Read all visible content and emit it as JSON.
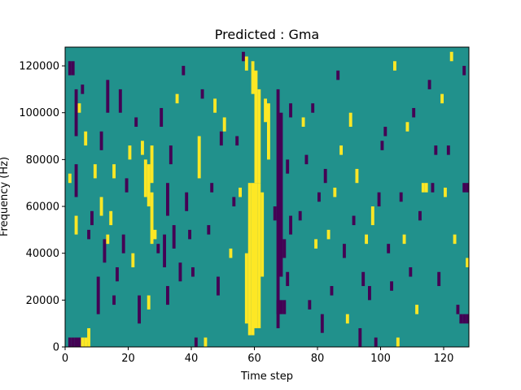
{
  "chart_data": {
    "type": "heatmap",
    "title": "Predicted : Gma",
    "xlabel": "Time step",
    "ylabel": "Frequency (Hz)",
    "xlim": [
      0,
      128
    ],
    "ylim": [
      0,
      128000
    ],
    "n_cols": 128,
    "n_rows": 64,
    "x_ticks": [
      0,
      20,
      40,
      60,
      80,
      100,
      120
    ],
    "x_tick_labels": [
      "0",
      "20",
      "40",
      "60",
      "80",
      "100",
      "120"
    ],
    "y_ticks": [
      0,
      20000,
      40000,
      60000,
      80000,
      100000,
      120000
    ],
    "y_tick_labels": [
      "0",
      "20000",
      "40000",
      "60000",
      "80000",
      "100000",
      "120000"
    ],
    "colors": {
      "low": "#440154",
      "mid": "#21918c",
      "high": "#fde725"
    },
    "base_level": "mid",
    "cells": [
      {
        "t": 58,
        "f0": 5000,
        "f1": 70000,
        "level": "high"
      },
      {
        "t": 59,
        "f0": 5000,
        "f1": 70000,
        "level": "high"
      },
      {
        "t": 60,
        "f0": 8000,
        "f1": 70000,
        "level": "high"
      },
      {
        "t": 61,
        "f0": 8000,
        "f1": 70000,
        "level": "high"
      },
      {
        "t": 60,
        "f0": 70000,
        "f1": 118000,
        "level": "high"
      },
      {
        "t": 61,
        "f0": 70000,
        "f1": 110000,
        "level": "high"
      },
      {
        "t": 59,
        "f0": 108000,
        "f1": 122000,
        "level": "high"
      },
      {
        "t": 62,
        "f0": 30000,
        "f1": 66000,
        "level": "high"
      },
      {
        "t": 57,
        "f0": 10000,
        "f1": 40000,
        "level": "high"
      },
      {
        "t": 63,
        "f0": 96000,
        "f1": 106000,
        "level": "high"
      },
      {
        "t": 64,
        "f0": 80000,
        "f1": 104000,
        "level": "high"
      },
      {
        "t": 67,
        "f0": 8000,
        "f1": 110000,
        "level": "low"
      },
      {
        "t": 68,
        "f0": 30000,
        "f1": 100000,
        "level": "low"
      },
      {
        "t": 66,
        "f0": 54000,
        "f1": 60000,
        "level": "low"
      },
      {
        "t": 67,
        "f0": 14000,
        "f1": 20000,
        "level": "low"
      },
      {
        "t": 68,
        "f0": 14000,
        "f1": 20000,
        "level": "low"
      },
      {
        "t": 69,
        "f0": 14000,
        "f1": 20000,
        "level": "low"
      },
      {
        "t": 70,
        "f0": 26000,
        "f1": 32000,
        "level": "low"
      },
      {
        "t": 69,
        "f0": 38000,
        "f1": 46000,
        "level": "low"
      },
      {
        "t": 70,
        "f0": 74000,
        "f1": 80000,
        "level": "low"
      },
      {
        "t": 71,
        "f0": 98000,
        "f1": 104000,
        "level": "low"
      },
      {
        "t": 71,
        "f0": 48000,
        "f1": 56000,
        "level": "low"
      },
      {
        "t": 1,
        "f0": 0,
        "f1": 4000,
        "level": "low"
      },
      {
        "t": 2,
        "f0": 0,
        "f1": 4000,
        "level": "low"
      },
      {
        "t": 3,
        "f0": 0,
        "f1": 4000,
        "level": "low"
      },
      {
        "t": 4,
        "f0": 0,
        "f1": 4000,
        "level": "low"
      },
      {
        "t": 5,
        "f0": 0,
        "f1": 4000,
        "level": "high"
      },
      {
        "t": 6,
        "f0": 0,
        "f1": 4000,
        "level": "high"
      },
      {
        "t": 7,
        "f0": 0,
        "f1": 4000,
        "level": "high"
      },
      {
        "t": 1,
        "f0": 116000,
        "f1": 122000,
        "level": "low"
      },
      {
        "t": 2,
        "f0": 116000,
        "f1": 122000,
        "level": "low"
      },
      {
        "t": 3,
        "f0": 48000,
        "f1": 56000,
        "level": "high"
      },
      {
        "t": 1,
        "f0": 70000,
        "f1": 74000,
        "level": "high"
      },
      {
        "t": 3,
        "f0": 64000,
        "f1": 78000,
        "level": "low"
      },
      {
        "t": 3,
        "f0": 90000,
        "f1": 110000,
        "level": "low"
      },
      {
        "t": 4,
        "f0": 100000,
        "f1": 104000,
        "level": "high"
      },
      {
        "t": 5,
        "f0": 108000,
        "f1": 112000,
        "level": "low"
      },
      {
        "t": 6,
        "f0": 86000,
        "f1": 92000,
        "level": "high"
      },
      {
        "t": 7,
        "f0": 46000,
        "f1": 50000,
        "level": "low"
      },
      {
        "t": 7,
        "f0": 2000,
        "f1": 8000,
        "level": "high"
      },
      {
        "t": 8,
        "f0": 52000,
        "f1": 58000,
        "level": "low"
      },
      {
        "t": 9,
        "f0": 72000,
        "f1": 78000,
        "level": "high"
      },
      {
        "t": 10,
        "f0": 14000,
        "f1": 30000,
        "level": "low"
      },
      {
        "t": 11,
        "f0": 84000,
        "f1": 92000,
        "level": "low"
      },
      {
        "t": 11,
        "f0": 56000,
        "f1": 64000,
        "level": "high"
      },
      {
        "t": 12,
        "f0": 36000,
        "f1": 46000,
        "level": "low"
      },
      {
        "t": 13,
        "f0": 100000,
        "f1": 114000,
        "level": "low"
      },
      {
        "t": 13,
        "f0": 44000,
        "f1": 48000,
        "level": "high"
      },
      {
        "t": 14,
        "f0": 52000,
        "f1": 58000,
        "level": "high"
      },
      {
        "t": 15,
        "f0": 72000,
        "f1": 78000,
        "level": "high"
      },
      {
        "t": 15,
        "f0": 18000,
        "f1": 22000,
        "level": "low"
      },
      {
        "t": 16,
        "f0": 28000,
        "f1": 34000,
        "level": "low"
      },
      {
        "t": 17,
        "f0": 100000,
        "f1": 110000,
        "level": "low"
      },
      {
        "t": 18,
        "f0": 40000,
        "f1": 48000,
        "level": "low"
      },
      {
        "t": 19,
        "f0": 66000,
        "f1": 72000,
        "level": "low"
      },
      {
        "t": 20,
        "f0": 80000,
        "f1": 86000,
        "level": "high"
      },
      {
        "t": 21,
        "f0": 34000,
        "f1": 40000,
        "level": "high"
      },
      {
        "t": 22,
        "f0": 94000,
        "f1": 98000,
        "level": "low"
      },
      {
        "t": 23,
        "f0": 10000,
        "f1": 22000,
        "level": "low"
      },
      {
        "t": 24,
        "f0": 82000,
        "f1": 88000,
        "level": "high"
      },
      {
        "t": 25,
        "f0": 64000,
        "f1": 80000,
        "level": "high"
      },
      {
        "t": 26,
        "f0": 60000,
        "f1": 78000,
        "level": "high"
      },
      {
        "t": 26,
        "f0": 16000,
        "f1": 22000,
        "level": "high"
      },
      {
        "t": 27,
        "f0": 44000,
        "f1": 66000,
        "level": "high"
      },
      {
        "t": 27,
        "f0": 70000,
        "f1": 86000,
        "level": "high"
      },
      {
        "t": 28,
        "f0": 46000,
        "f1": 50000,
        "level": "high"
      },
      {
        "t": 29,
        "f0": 40000,
        "f1": 44000,
        "level": "low"
      },
      {
        "t": 30,
        "f0": 94000,
        "f1": 102000,
        "level": "low"
      },
      {
        "t": 31,
        "f0": 34000,
        "f1": 48000,
        "level": "low"
      },
      {
        "t": 32,
        "f0": 18000,
        "f1": 26000,
        "level": "low"
      },
      {
        "t": 32,
        "f0": 56000,
        "f1": 70000,
        "level": "low"
      },
      {
        "t": 33,
        "f0": 78000,
        "f1": 86000,
        "level": "low"
      },
      {
        "t": 34,
        "f0": 42000,
        "f1": 52000,
        "level": "low"
      },
      {
        "t": 35,
        "f0": 104000,
        "f1": 108000,
        "level": "high"
      },
      {
        "t": 36,
        "f0": 28000,
        "f1": 36000,
        "level": "low"
      },
      {
        "t": 37,
        "f0": 116000,
        "f1": 120000,
        "level": "low"
      },
      {
        "t": 38,
        "f0": 58000,
        "f1": 66000,
        "level": "low"
      },
      {
        "t": 39,
        "f0": 46000,
        "f1": 50000,
        "level": "low"
      },
      {
        "t": 40,
        "f0": 30000,
        "f1": 34000,
        "level": "low"
      },
      {
        "t": 41,
        "f0": 0,
        "f1": 4000,
        "level": "low"
      },
      {
        "t": 42,
        "f0": 72000,
        "f1": 90000,
        "level": "high"
      },
      {
        "t": 43,
        "f0": 106000,
        "f1": 110000,
        "level": "low"
      },
      {
        "t": 44,
        "f0": 0,
        "f1": 4000,
        "level": "high"
      },
      {
        "t": 45,
        "f0": 48000,
        "f1": 52000,
        "level": "low"
      },
      {
        "t": 46,
        "f0": 66000,
        "f1": 70000,
        "level": "low"
      },
      {
        "t": 47,
        "f0": 100000,
        "f1": 106000,
        "level": "high"
      },
      {
        "t": 48,
        "f0": 22000,
        "f1": 30000,
        "level": "low"
      },
      {
        "t": 49,
        "f0": 86000,
        "f1": 92000,
        "level": "low"
      },
      {
        "t": 50,
        "f0": 92000,
        "f1": 98000,
        "level": "high"
      },
      {
        "t": 52,
        "f0": 38000,
        "f1": 42000,
        "level": "high"
      },
      {
        "t": 53,
        "f0": 60000,
        "f1": 64000,
        "level": "low"
      },
      {
        "t": 54,
        "f0": 86000,
        "f1": 90000,
        "level": "low"
      },
      {
        "t": 55,
        "f0": 64000,
        "f1": 68000,
        "level": "high"
      },
      {
        "t": 56,
        "f0": 122000,
        "f1": 126000,
        "level": "low"
      },
      {
        "t": 57,
        "f0": 118000,
        "f1": 124000,
        "level": "high"
      },
      {
        "t": 74,
        "f0": 54000,
        "f1": 58000,
        "level": "low"
      },
      {
        "t": 75,
        "f0": 94000,
        "f1": 98000,
        "level": "high"
      },
      {
        "t": 76,
        "f0": 78000,
        "f1": 82000,
        "level": "low"
      },
      {
        "t": 77,
        "f0": 16000,
        "f1": 20000,
        "level": "low"
      },
      {
        "t": 78,
        "f0": 100000,
        "f1": 104000,
        "level": "low"
      },
      {
        "t": 79,
        "f0": 42000,
        "f1": 46000,
        "level": "high"
      },
      {
        "t": 80,
        "f0": 62000,
        "f1": 66000,
        "level": "low"
      },
      {
        "t": 81,
        "f0": 6000,
        "f1": 14000,
        "level": "low"
      },
      {
        "t": 82,
        "f0": 70000,
        "f1": 76000,
        "level": "low"
      },
      {
        "t": 83,
        "f0": 46000,
        "f1": 50000,
        "level": "high"
      },
      {
        "t": 84,
        "f0": 22000,
        "f1": 26000,
        "level": "low"
      },
      {
        "t": 85,
        "f0": 64000,
        "f1": 68000,
        "level": "high"
      },
      {
        "t": 86,
        "f0": 114000,
        "f1": 118000,
        "level": "low"
      },
      {
        "t": 87,
        "f0": 82000,
        "f1": 86000,
        "level": "high"
      },
      {
        "t": 88,
        "f0": 38000,
        "f1": 44000,
        "level": "low"
      },
      {
        "t": 89,
        "f0": 10000,
        "f1": 14000,
        "level": "high"
      },
      {
        "t": 90,
        "f0": 94000,
        "f1": 100000,
        "level": "high"
      },
      {
        "t": 91,
        "f0": 52000,
        "f1": 56000,
        "level": "low"
      },
      {
        "t": 92,
        "f0": 70000,
        "f1": 76000,
        "level": "high"
      },
      {
        "t": 93,
        "f0": 0,
        "f1": 8000,
        "level": "low"
      },
      {
        "t": 94,
        "f0": 26000,
        "f1": 32000,
        "level": "low"
      },
      {
        "t": 95,
        "f0": 44000,
        "f1": 48000,
        "level": "high"
      },
      {
        "t": 96,
        "f0": 20000,
        "f1": 26000,
        "level": "low"
      },
      {
        "t": 97,
        "f0": 52000,
        "f1": 60000,
        "level": "high"
      },
      {
        "t": 98,
        "f0": 0,
        "f1": 4000,
        "level": "low"
      },
      {
        "t": 99,
        "f0": 60000,
        "f1": 66000,
        "level": "low"
      },
      {
        "t": 100,
        "f0": 84000,
        "f1": 88000,
        "level": "low"
      },
      {
        "t": 101,
        "f0": 90000,
        "f1": 94000,
        "level": "low"
      },
      {
        "t": 102,
        "f0": 40000,
        "f1": 44000,
        "level": "low"
      },
      {
        "t": 103,
        "f0": 24000,
        "f1": 28000,
        "level": "low"
      },
      {
        "t": 104,
        "f0": 118000,
        "f1": 122000,
        "level": "high"
      },
      {
        "t": 105,
        "f0": 0,
        "f1": 4000,
        "level": "high"
      },
      {
        "t": 106,
        "f0": 62000,
        "f1": 66000,
        "level": "low"
      },
      {
        "t": 107,
        "f0": 44000,
        "f1": 48000,
        "level": "high"
      },
      {
        "t": 108,
        "f0": 92000,
        "f1": 96000,
        "level": "high"
      },
      {
        "t": 109,
        "f0": 30000,
        "f1": 34000,
        "level": "low"
      },
      {
        "t": 110,
        "f0": 98000,
        "f1": 102000,
        "level": "low"
      },
      {
        "t": 111,
        "f0": 14000,
        "f1": 18000,
        "level": "high"
      },
      {
        "t": 112,
        "f0": 54000,
        "f1": 58000,
        "level": "low"
      },
      {
        "t": 113,
        "f0": 66000,
        "f1": 70000,
        "level": "high"
      },
      {
        "t": 114,
        "f0": 66000,
        "f1": 70000,
        "level": "high"
      },
      {
        "t": 115,
        "f0": 110000,
        "f1": 114000,
        "level": "low"
      },
      {
        "t": 116,
        "f0": 66000,
        "f1": 70000,
        "level": "low"
      },
      {
        "t": 117,
        "f0": 82000,
        "f1": 86000,
        "level": "low"
      },
      {
        "t": 118,
        "f0": 26000,
        "f1": 32000,
        "level": "low"
      },
      {
        "t": 119,
        "f0": 104000,
        "f1": 108000,
        "level": "high"
      },
      {
        "t": 120,
        "f0": 64000,
        "f1": 68000,
        "level": "high"
      },
      {
        "t": 121,
        "f0": 82000,
        "f1": 86000,
        "level": "low"
      },
      {
        "t": 122,
        "f0": 122000,
        "f1": 126000,
        "level": "high"
      },
      {
        "t": 123,
        "f0": 44000,
        "f1": 48000,
        "level": "high"
      },
      {
        "t": 124,
        "f0": 14000,
        "f1": 18000,
        "level": "low"
      },
      {
        "t": 125,
        "f0": 10000,
        "f1": 14000,
        "level": "low"
      },
      {
        "t": 126,
        "f0": 10000,
        "f1": 14000,
        "level": "low"
      },
      {
        "t": 127,
        "f0": 10000,
        "f1": 14000,
        "level": "low"
      },
      {
        "t": 126,
        "f0": 66000,
        "f1": 70000,
        "level": "low"
      },
      {
        "t": 127,
        "f0": 66000,
        "f1": 70000,
        "level": "low"
      },
      {
        "t": 127,
        "f0": 34000,
        "f1": 38000,
        "level": "high"
      },
      {
        "t": 126,
        "f0": 116000,
        "f1": 120000,
        "level": "low"
      }
    ]
  }
}
